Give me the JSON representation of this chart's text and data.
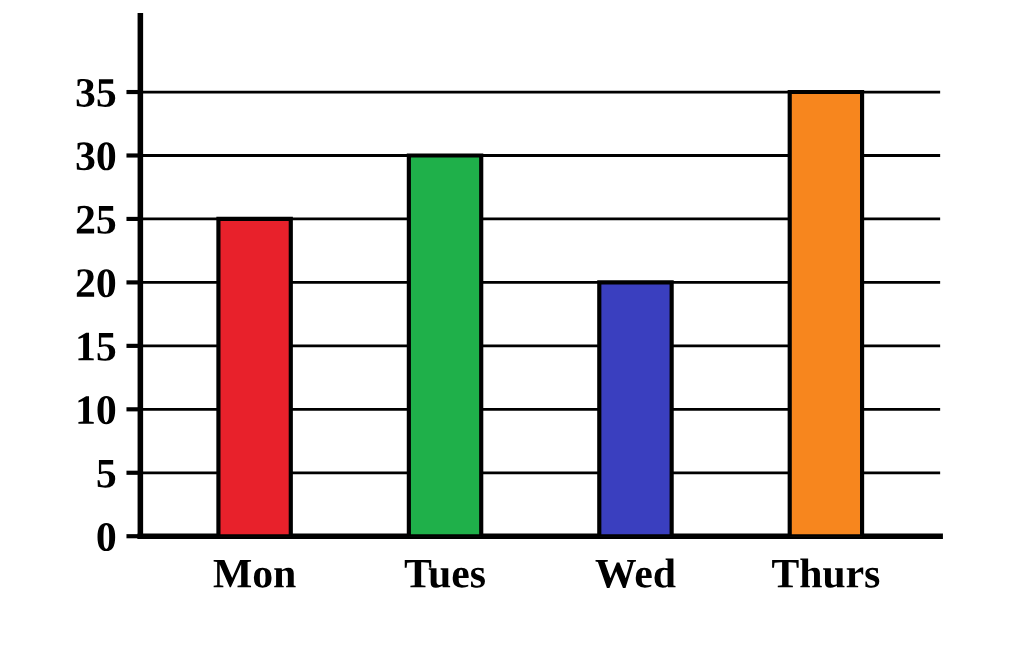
{
  "chart_data": {
    "type": "bar",
    "categories": [
      "Mon",
      "Tues",
      "Wed",
      "Thurs"
    ],
    "values": [
      25,
      30,
      20,
      35
    ],
    "colors": [
      "#e8212b",
      "#1fb04a",
      "#3a3fbf",
      "#f7861e"
    ],
    "ylim": [
      0,
      41
    ],
    "yticks": [
      0,
      5,
      10,
      15,
      20,
      25,
      30,
      35
    ],
    "grid": "y",
    "legend": false
  }
}
